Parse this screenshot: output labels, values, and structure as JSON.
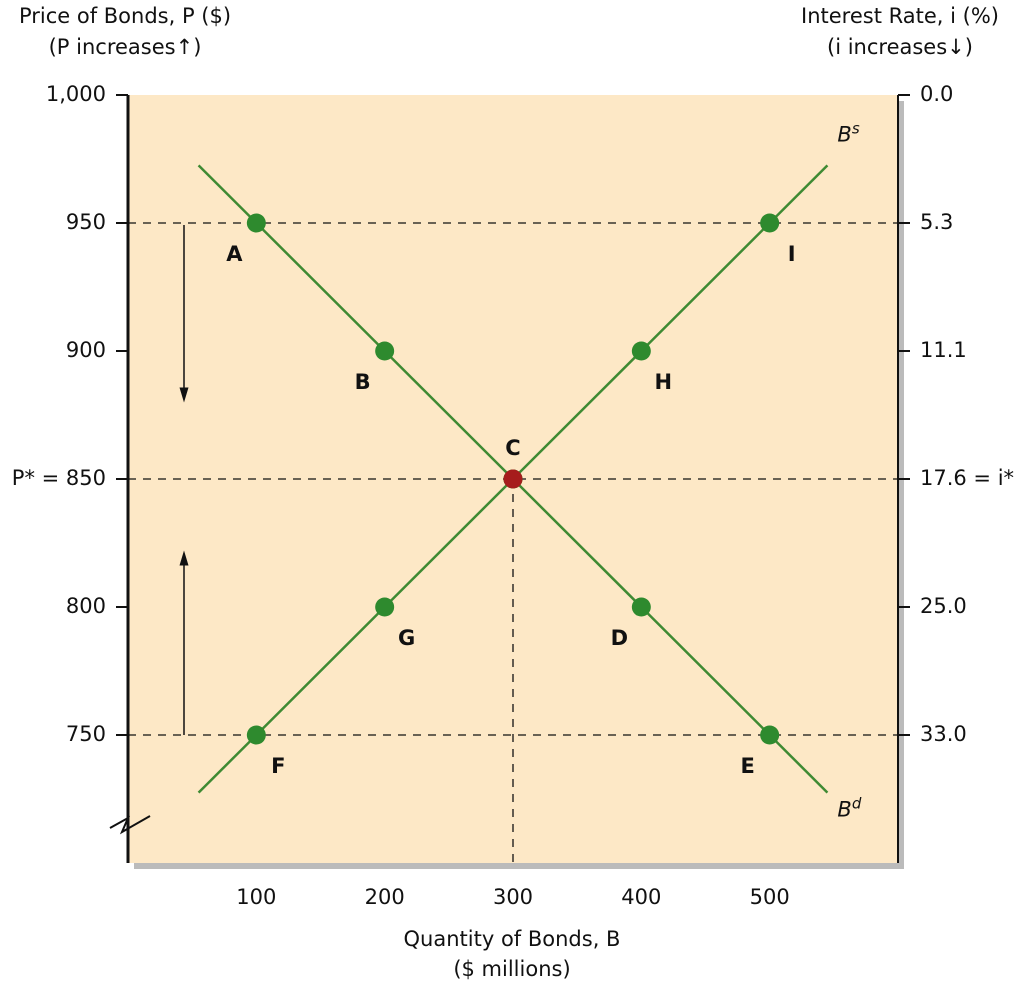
{
  "chart_data": {
    "type": "line",
    "y_axis_title": [
      "Price of Bonds, P ($)",
      "(P increases↑)"
    ],
    "y2_axis_title": [
      "Interest Rate, i (%)",
      "(i increases↓)"
    ],
    "x_axis_title": [
      "Quantity of Bonds, B",
      "($ millions)"
    ],
    "xlim": [
      0,
      600
    ],
    "xticks": [
      100,
      200,
      300,
      400,
      500
    ],
    "ylim": [
      700,
      1000
    ],
    "yticks": [
      750,
      800,
      {
        "value": 850,
        "label": "P* = 850"
      },
      900,
      950,
      {
        "value": 1000,
        "label": "1,000"
      }
    ],
    "y2ticks": [
      {
        "value": 33,
        "label": "33.0"
      },
      {
        "value": 25,
        "label": "25.0"
      },
      {
        "value": 17.6,
        "label": "17.6 = i*"
      },
      {
        "value": 11.1,
        "label": "11.1"
      },
      {
        "value": 5.3,
        "label": "5.3"
      },
      {
        "value": 0,
        "label": "0.0"
      }
    ],
    "reference_lines": [
      950,
      850,
      750
    ],
    "series": [
      {
        "name": "Bd",
        "color": "#3f8a33",
        "x": [
          100,
          200,
          300,
          400,
          500
        ],
        "values": [
          950,
          900,
          850,
          800,
          750
        ],
        "point_labels": [
          "A",
          "B",
          null,
          "D",
          "E"
        ]
      },
      {
        "name": "Bs",
        "color": "#3f8a33",
        "x": [
          100,
          200,
          300,
          400,
          500
        ],
        "values": [
          750,
          800,
          850,
          900,
          950
        ],
        "point_labels": [
          "F",
          "G",
          null,
          "H",
          "I"
        ]
      }
    ],
    "equilibrium": {
      "label": "C",
      "x": 300,
      "y": 850,
      "color": "#a61c1c"
    }
  }
}
